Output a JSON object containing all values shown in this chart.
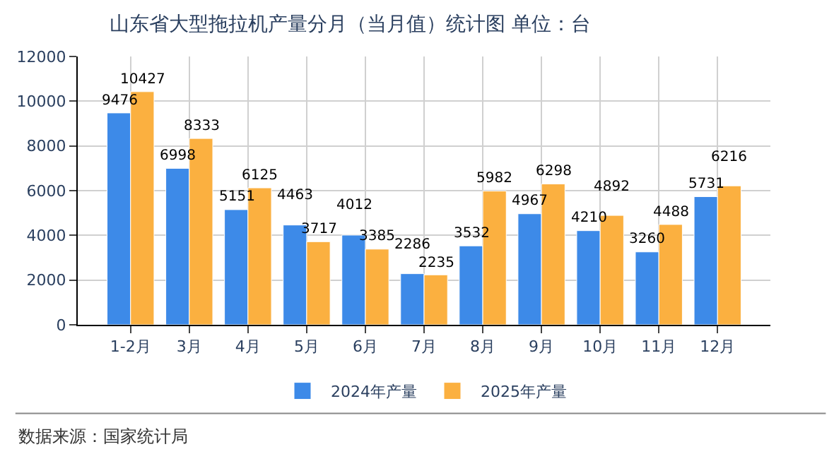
{
  "chart_data": {
    "type": "bar",
    "title": "山东省大型拖拉机产量分月（当月值）统计图 单位：台",
    "categories": [
      "1-2月",
      "3月",
      "4月",
      "5月",
      "6月",
      "7月",
      "8月",
      "9月",
      "10月",
      "11月",
      "12月"
    ],
    "series": [
      {
        "name": "2024年产量",
        "color": "#3d8ae8",
        "values": [
          9476,
          6998,
          5151,
          4463,
          4012,
          2286,
          3532,
          4967,
          4210,
          3260,
          5731
        ]
      },
      {
        "name": "2025年产量",
        "color": "#fbb040",
        "values": [
          10427,
          8333,
          6125,
          3717,
          3385,
          2235,
          5982,
          6298,
          4892,
          4488,
          6216
        ]
      }
    ],
    "ylim": [
      0,
      12000
    ],
    "yticks": [
      0,
      2000,
      4000,
      6000,
      8000,
      10000,
      12000
    ],
    "grid": true,
    "legend": "bottom",
    "data_labels": true,
    "annotations": [
      "数据来源：国家统计局"
    ]
  }
}
